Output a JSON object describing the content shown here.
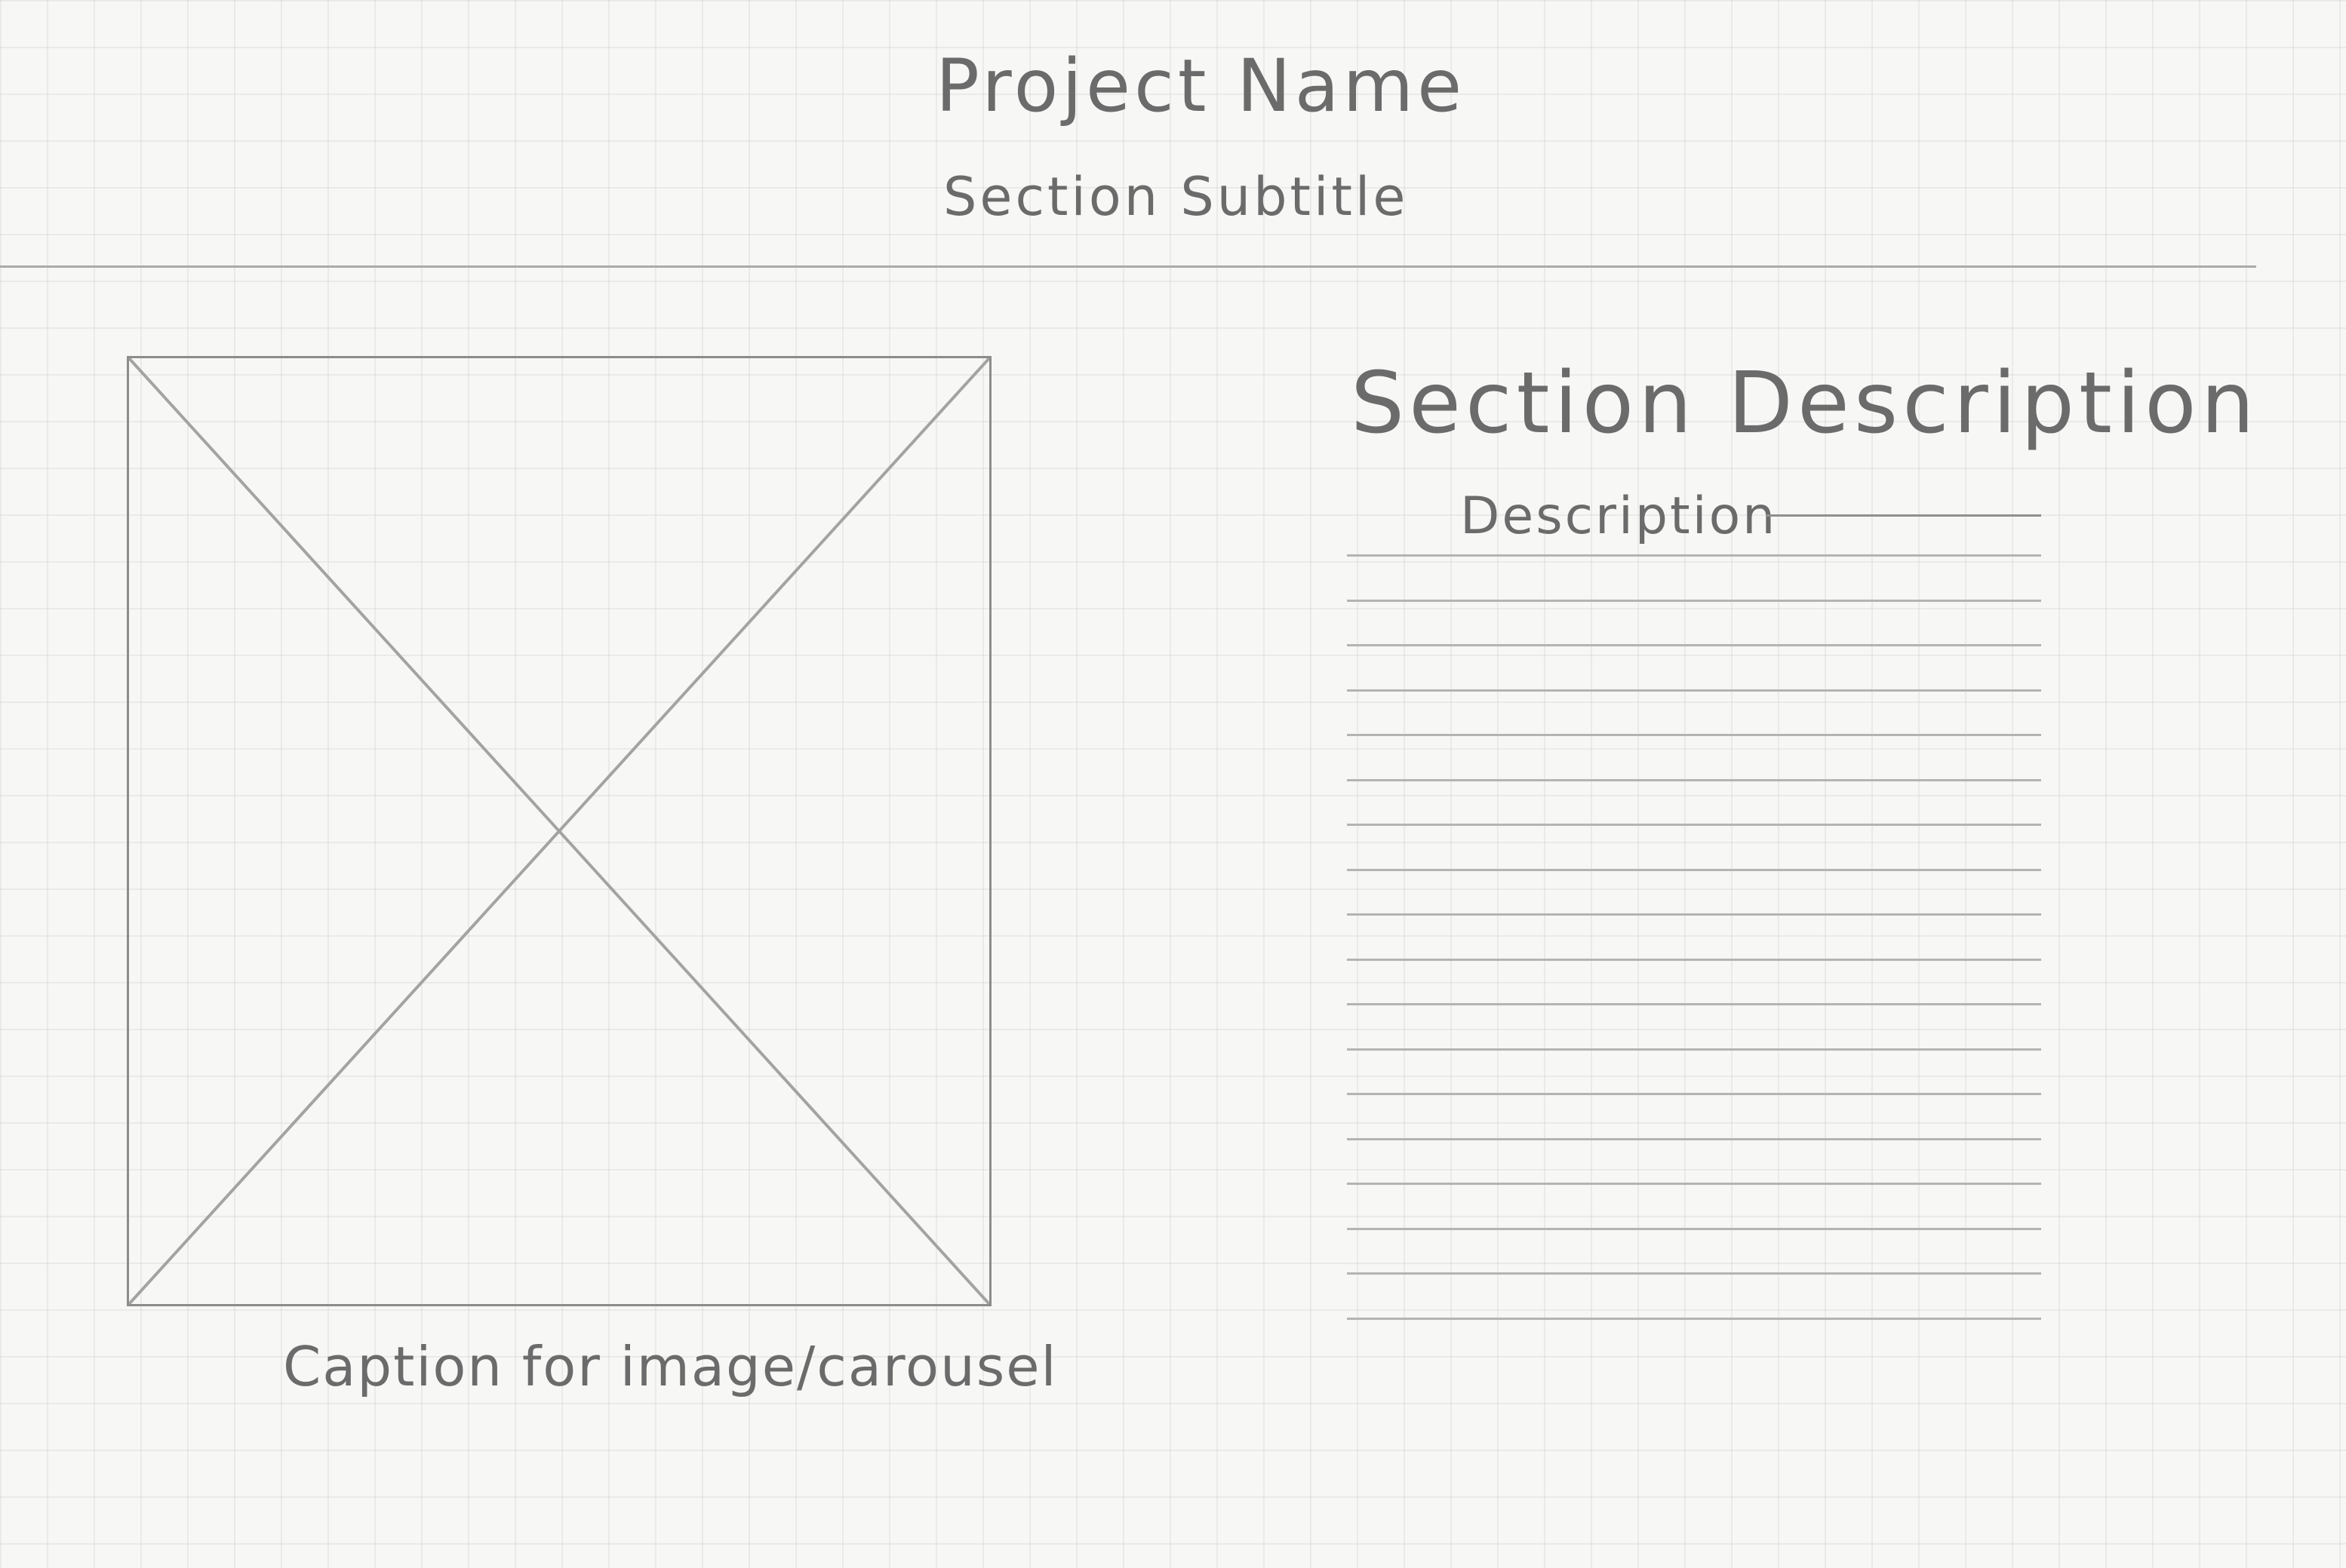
{
  "header": {
    "project_name": "Project Name",
    "subtitle": "Section Subtitle"
  },
  "image_panel": {
    "caption": "Caption for image/carousel"
  },
  "description_panel": {
    "heading": "Section Description",
    "label": "Description",
    "line_count": 18
  },
  "colors": {
    "paper": "#f7f7f5",
    "pencil": "#6b6b6b",
    "grid": "#e3e3e1"
  }
}
